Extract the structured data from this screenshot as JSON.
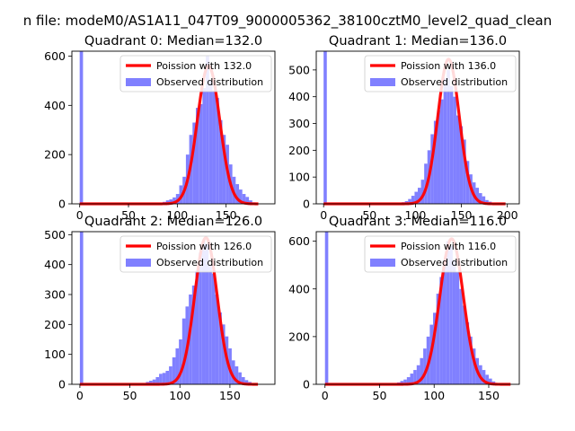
{
  "suptitle": "n file: modeM0/AS1A11_047T09_9000005362_38100cztM0_level2_quad_clean",
  "colors": {
    "hist": "#8080ff",
    "poisson": "#ff0000",
    "axes": "#000000"
  },
  "chart_data": [
    {
      "type": "bar",
      "title": "Quadrant 0: Median=132.0",
      "median": 132.0,
      "xlim": [
        -8,
        200
      ],
      "ylim": [
        0,
        620
      ],
      "xticks": [
        0,
        50,
        100,
        150
      ],
      "yticks": [
        0,
        200,
        400,
        600
      ],
      "legend": {
        "placement": "top-right",
        "entries": [
          "Poission with 132.0",
          "Observed distribution"
        ]
      },
      "series": [
        {
          "name": "Observed distribution",
          "kind": "histogram",
          "bins": [
            [
              0,
              3.4,
              620
            ],
            [
              3.4,
              6.8,
              2
            ],
            [
              85,
              88.4,
              8
            ],
            [
              88.4,
              91.8,
              14
            ],
            [
              91.8,
              95.2,
              18
            ],
            [
              95.2,
              98.6,
              26
            ],
            [
              98.6,
              102,
              40
            ],
            [
              102,
              105.4,
              75
            ],
            [
              105.4,
              108.8,
              110
            ],
            [
              108.8,
              112.2,
              200
            ],
            [
              112.2,
              115.6,
              280
            ],
            [
              115.6,
              119,
              330
            ],
            [
              119,
              122.4,
              390
            ],
            [
              122.4,
              125.8,
              405
            ],
            [
              125.8,
              129.2,
              470
            ],
            [
              129.2,
              132.6,
              600
            ],
            [
              132.6,
              136,
              500
            ],
            [
              136,
              139.4,
              460
            ],
            [
              139.4,
              142.8,
              430
            ],
            [
              142.8,
              146.2,
              340
            ],
            [
              146.2,
              149.6,
              280
            ],
            [
              149.6,
              153,
              240
            ],
            [
              153,
              156.4,
              160
            ],
            [
              156.4,
              159.8,
              110
            ],
            [
              159.8,
              163.2,
              80
            ],
            [
              163.2,
              166.6,
              58
            ],
            [
              166.6,
              170,
              40
            ],
            [
              170,
              173.4,
              28
            ],
            [
              173.4,
              176.8,
              14
            ],
            [
              176.8,
              180.2,
              6
            ]
          ]
        },
        {
          "name": "Poission with 132.0",
          "kind": "line",
          "mean": 132.0,
          "peak": 560,
          "x_range": [
            0,
            183
          ]
        }
      ]
    },
    {
      "type": "bar",
      "title": "Quadrant 1: Median=136.0",
      "median": 136.0,
      "xlim": [
        -8,
        213
      ],
      "ylim": [
        0,
        570
      ],
      "xticks": [
        0,
        50,
        100,
        150,
        200
      ],
      "yticks": [
        0,
        100,
        200,
        300,
        400,
        500
      ],
      "legend": {
        "placement": "top-right",
        "entries": [
          "Poission with 136.0",
          "Observed distribution"
        ]
      },
      "series": [
        {
          "name": "Observed distribution",
          "kind": "histogram",
          "bins": [
            [
              0,
              3.5,
              570
            ],
            [
              3.5,
              7,
              2
            ],
            [
              85,
              88.5,
              6
            ],
            [
              88.5,
              92,
              10
            ],
            [
              92,
              95.5,
              18
            ],
            [
              95.5,
              99,
              30
            ],
            [
              99,
              102.5,
              45
            ],
            [
              102.5,
              106,
              60
            ],
            [
              106,
              109.5,
              90
            ],
            [
              109.5,
              113,
              150
            ],
            [
              113,
              116.5,
              200
            ],
            [
              116.5,
              120,
              260
            ],
            [
              120,
              123.5,
              310
            ],
            [
              123.5,
              127,
              350
            ],
            [
              127,
              130.5,
              390
            ],
            [
              130.5,
              134,
              470
            ],
            [
              134,
              137.5,
              500
            ],
            [
              137.5,
              141,
              440
            ],
            [
              141,
              144.5,
              400
            ],
            [
              144.5,
              148,
              330
            ],
            [
              148,
              151.5,
              290
            ],
            [
              151.5,
              155,
              240
            ],
            [
              155,
              158.5,
              160
            ],
            [
              158.5,
              162,
              110
            ],
            [
              162,
              165.5,
              80
            ],
            [
              165.5,
              169,
              60
            ],
            [
              169,
              172.5,
              40
            ],
            [
              172.5,
              176,
              28
            ],
            [
              176,
              179.5,
              14
            ],
            [
              179.5,
              183,
              8
            ]
          ]
        },
        {
          "name": "Poission with 136.0",
          "kind": "line",
          "mean": 136.0,
          "peak": 540,
          "x_range": [
            0,
            198
          ]
        }
      ]
    },
    {
      "type": "bar",
      "title": "Quadrant 2: Median=126.0",
      "median": 126.0,
      "xlim": [
        -8,
        195
      ],
      "ylim": [
        0,
        510
      ],
      "xticks": [
        0,
        50,
        100,
        150
      ],
      "yticks": [
        0,
        100,
        200,
        300,
        400,
        500
      ],
      "legend": {
        "placement": "top-right",
        "entries": [
          "Poission with 126.0",
          "Observed distribution"
        ]
      },
      "series": [
        {
          "name": "Observed distribution",
          "kind": "histogram",
          "bins": [
            [
              0,
              3.3,
              510
            ],
            [
              3.3,
              6.6,
              2
            ],
            [
              66,
              69.3,
              8
            ],
            [
              69.3,
              72.6,
              12
            ],
            [
              72.6,
              75.9,
              16
            ],
            [
              75.9,
              79.2,
              24
            ],
            [
              79.2,
              82.5,
              35
            ],
            [
              82.5,
              85.8,
              38
            ],
            [
              85.8,
              89.1,
              45
            ],
            [
              89.1,
              92.4,
              60
            ],
            [
              92.4,
              95.7,
              90
            ],
            [
              95.7,
              99,
              120
            ],
            [
              99,
              102.3,
              150
            ],
            [
              102.3,
              105.6,
              220
            ],
            [
              105.6,
              108.9,
              260
            ],
            [
              108.9,
              112.2,
              300
            ],
            [
              112.2,
              115.5,
              330
            ],
            [
              115.5,
              118.8,
              380
            ],
            [
              118.8,
              122.1,
              440
            ],
            [
              122.1,
              125.4,
              480
            ],
            [
              125.4,
              128.7,
              470
            ],
            [
              128.7,
              132,
              400
            ],
            [
              132,
              135.3,
              370
            ],
            [
              135.3,
              138.6,
              300
            ],
            [
              138.6,
              141.9,
              240
            ],
            [
              141.9,
              145.2,
              200
            ],
            [
              145.2,
              148.5,
              160
            ],
            [
              148.5,
              151.8,
              120
            ],
            [
              151.8,
              155.1,
              80
            ],
            [
              155.1,
              158.4,
              60
            ],
            [
              158.4,
              161.7,
              40
            ],
            [
              161.7,
              165,
              24
            ],
            [
              165,
              168.3,
              14
            ],
            [
              168.3,
              171.6,
              8
            ]
          ]
        },
        {
          "name": "Poission with 126.0",
          "kind": "line",
          "mean": 126.0,
          "peak": 490,
          "x_range": [
            0,
            178
          ]
        }
      ]
    },
    {
      "type": "bar",
      "title": "Quadrant 3: Median=116.0",
      "median": 116.0,
      "xlim": [
        -8,
        178
      ],
      "ylim": [
        0,
        640
      ],
      "xticks": [
        0,
        50,
        100,
        150
      ],
      "yticks": [
        0,
        200,
        400,
        600
      ],
      "legend": {
        "placement": "top-right",
        "entries": [
          "Poission with 116.0",
          "Observed distribution"
        ]
      },
      "series": [
        {
          "name": "Observed distribution",
          "kind": "histogram",
          "bins": [
            [
              0,
              3,
              640
            ],
            [
              3,
              6,
              2
            ],
            [
              66,
              69,
              8
            ],
            [
              69,
              72,
              14
            ],
            [
              72,
              75,
              20
            ],
            [
              75,
              78,
              30
            ],
            [
              78,
              81,
              45
            ],
            [
              81,
              84,
              60
            ],
            [
              84,
              87,
              80
            ],
            [
              87,
              90,
              110
            ],
            [
              90,
              93,
              150
            ],
            [
              93,
              96,
              200
            ],
            [
              96,
              99,
              250
            ],
            [
              99,
              102,
              300
            ],
            [
              102,
              105,
              380
            ],
            [
              105,
              108,
              450
            ],
            [
              108,
              111,
              520
            ],
            [
              111,
              114,
              600
            ],
            [
              114,
              117,
              580
            ],
            [
              117,
              120,
              520
            ],
            [
              120,
              123,
              470
            ],
            [
              123,
              126,
              400
            ],
            [
              126,
              129,
              330
            ],
            [
              129,
              132,
              260
            ],
            [
              132,
              135,
              200
            ],
            [
              135,
              138,
              150
            ],
            [
              138,
              141,
              110
            ],
            [
              141,
              144,
              80
            ],
            [
              144,
              147,
              60
            ],
            [
              147,
              150,
              40
            ],
            [
              150,
              153,
              24
            ],
            [
              153,
              156,
              12
            ]
          ]
        },
        {
          "name": "Poission with 116.0",
          "kind": "line",
          "mean": 116.0,
          "peak": 610,
          "x_range": [
            0,
            170
          ]
        }
      ]
    }
  ]
}
